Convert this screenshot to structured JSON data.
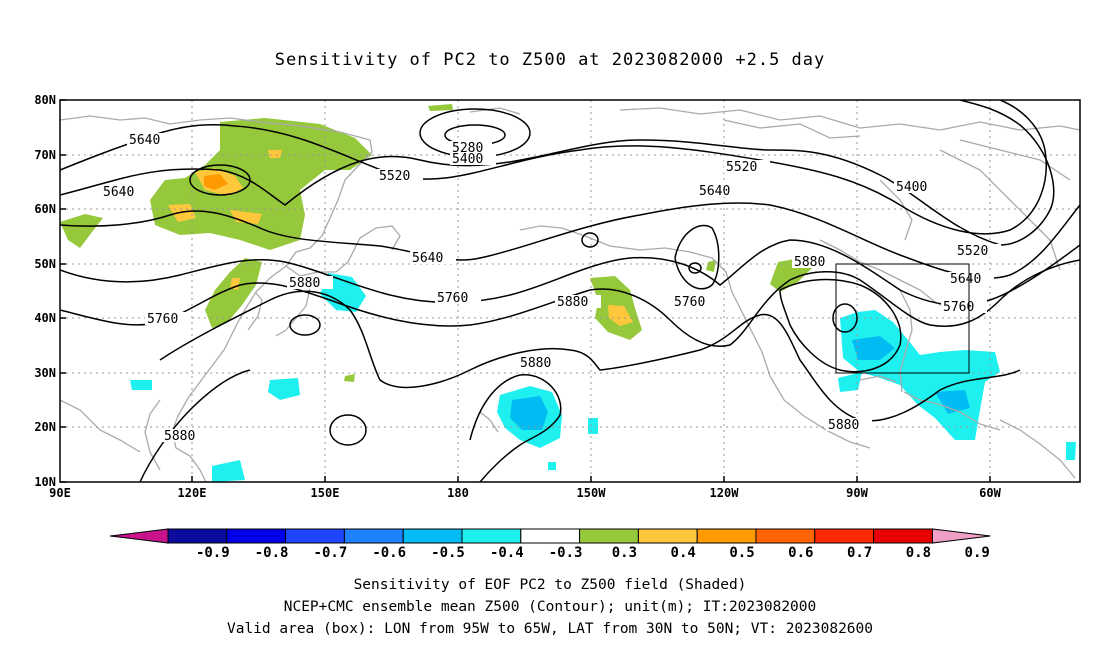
{
  "title": "Sensitivity of PC2 to Z500 at 2023082000 +2.5 day",
  "map": {
    "projection": "cylindrical equidistant",
    "lon_range": [
      "90E",
      "40W"
    ],
    "lat_range": [
      "10N",
      "80N"
    ],
    "gridlines": "dotted",
    "lon_ticks": [
      "90E",
      "120E",
      "150E",
      "180",
      "150W",
      "120W",
      "90W",
      "60W"
    ],
    "lat_ticks": [
      "80N",
      "70N",
      "60N",
      "50N",
      "40N",
      "30N",
      "20N",
      "10N"
    ],
    "coastline_color": "#aaaaaa",
    "contour_color": "#000000",
    "contour_labels": [
      "5280",
      "5400",
      "5400",
      "5520",
      "5520",
      "5520",
      "5640",
      "5640",
      "5640",
      "5640",
      "5640",
      "5760",
      "5760",
      "5760",
      "5760",
      "5880",
      "5880",
      "5880",
      "5880",
      "5880",
      "5880"
    ],
    "valid_box": {
      "lon_west": "95W",
      "lon_east": "65W",
      "lat_south": "30N",
      "lat_north": "50N"
    }
  },
  "colorbar": {
    "labels": [
      "-0.9",
      "-0.8",
      "-0.7",
      "-0.6",
      "-0.5",
      "-0.4",
      "-0.3",
      "0.3",
      "0.4",
      "0.5",
      "0.6",
      "0.7",
      "0.8",
      "0.9"
    ],
    "colors": [
      "#0b0b9c",
      "#0000e6",
      "#1e46ff",
      "#1e82ff",
      "#00bcf2",
      "#1ef0f0",
      "#ffffff",
      "#96c83c",
      "#ffc83c",
      "#ff9a00",
      "#ff6400",
      "#ff2800",
      "#e60000"
    ],
    "low_extension_color": "#c8148c",
    "high_extension_color": "#f0a0c8"
  },
  "caption": {
    "line1": "Sensitivity of EOF PC2 to Z500 field (Shaded)",
    "line2": "NCEP+CMC ensemble mean Z500 (Contour); unit(m); IT:2023082000",
    "line3": "Valid area (box): LON from 95W to 65W, LAT from 30N to 50N; VT: 2023082600"
  }
}
